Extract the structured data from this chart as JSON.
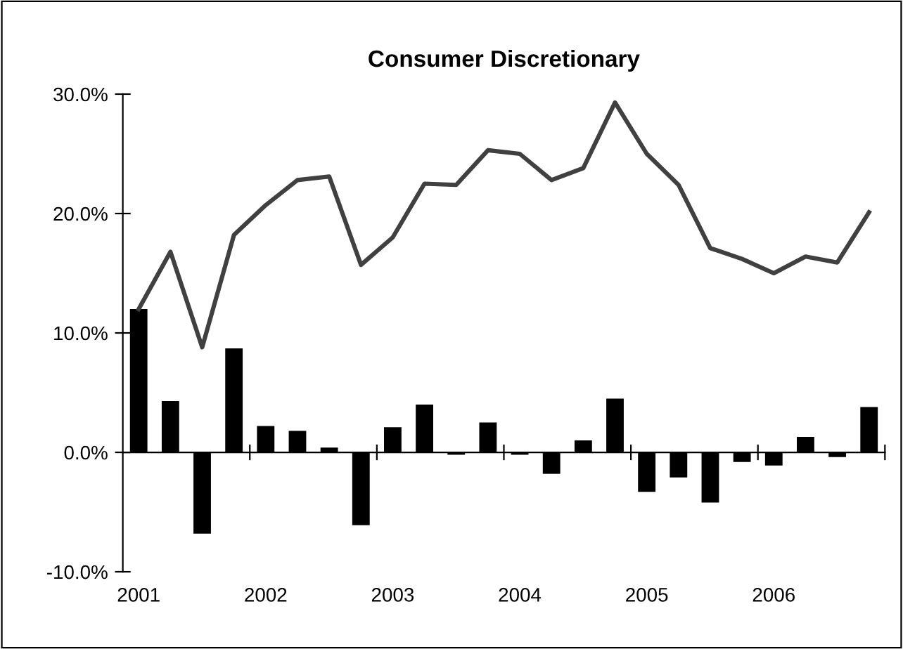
{
  "chart_data": {
    "type": "bar",
    "title": "Consumer Discretionary",
    "categories": [
      "2001",
      null,
      null,
      null,
      "2002",
      null,
      null,
      null,
      "2003",
      null,
      null,
      null,
      "2004",
      null,
      null,
      null,
      "2005",
      null,
      null,
      null,
      "2006",
      null,
      null,
      null
    ],
    "series": [
      {
        "color": "#000000",
        "values": [
          12.0,
          4.3,
          -6.8,
          8.7,
          2.2,
          1.8,
          0.4,
          -6.1,
          2.1,
          4.0,
          -0.2,
          2.5,
          -0.2,
          -1.8,
          1.0,
          4.5,
          -3.3,
          -2.1,
          -4.2,
          -0.8,
          -1.1,
          1.3,
          -0.4,
          3.8
        ]
      },
      {
        "type": "line",
        "color": "#404040",
        "values": [
          12.0,
          16.8,
          8.8,
          18.2,
          20.7,
          22.8,
          23.1,
          15.7,
          18.0,
          22.5,
          22.4,
          25.3,
          25.0,
          22.8,
          23.8,
          29.3,
          25.0,
          22.4,
          17.1,
          16.2,
          15.0,
          16.4,
          15.9,
          20.1
        ]
      }
    ],
    "ylim": [
      -10,
      30
    ],
    "yticks": [
      {
        "value": -10,
        "label": "-10.0%"
      },
      {
        "value": 0,
        "label": "0.0%"
      },
      {
        "value": 10,
        "label": "10.0%"
      },
      {
        "value": 20,
        "label": "20.0%"
      },
      {
        "value": 30,
        "label": "30.0%"
      }
    ],
    "legend": false,
    "marker": "none",
    "line_style": "solid"
  }
}
